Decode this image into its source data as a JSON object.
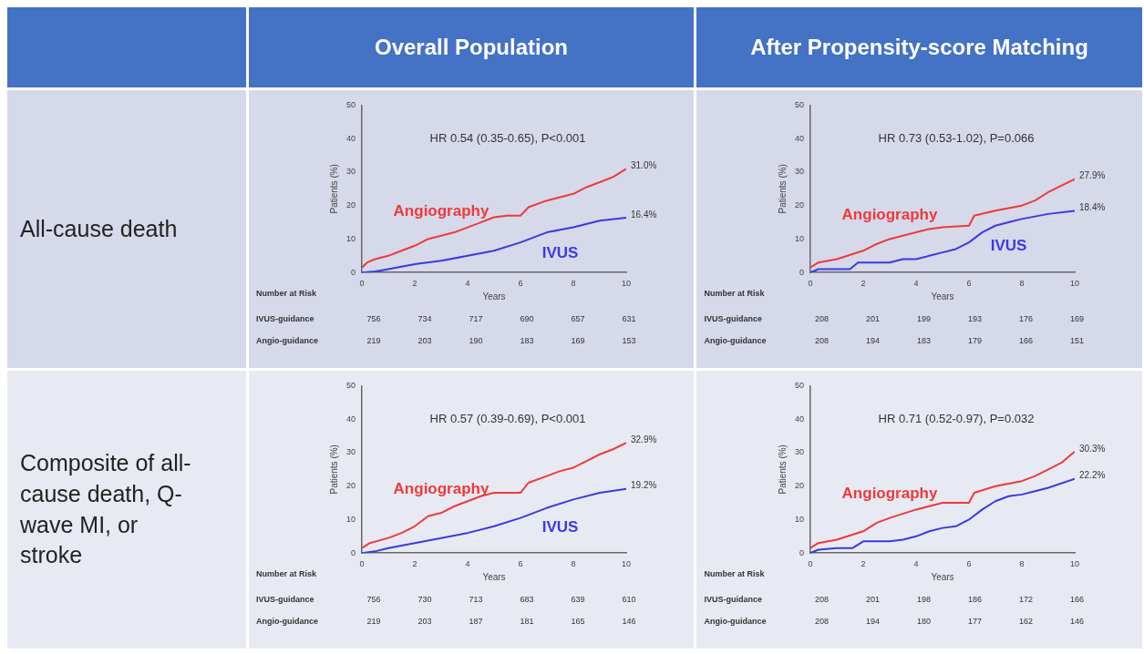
{
  "chart_data": [
    {
      "type": "other",
      "annotations": [
        "Overall Population",
        "After Propensity-score Matching",
        "All-cause death",
        "Composite of all-cause death, Q-wave MI, or stroke"
      ]
    },
    {
      "type": "line",
      "xlabel": "Years",
      "ylabel": "Patients (%)",
      "xlim": [
        0,
        10
      ],
      "xticks": [
        0,
        2,
        4,
        6,
        8,
        10
      ],
      "ylim": [
        0,
        50
      ],
      "yticks": [
        0,
        10,
        20,
        30,
        40,
        50
      ],
      "marker": "none",
      "grid": false,
      "legend": false,
      "annotations": [
        "HR 0.54 (0.35-0.65), P<0.001",
        "Number at Risk",
        "IVUS-guidance",
        "756",
        "734",
        "717",
        "690",
        "657",
        "631",
        "Angio-guidance",
        "219",
        "203",
        "190",
        "183",
        "169",
        "153"
      ],
      "series": [
        {
          "name": "Angiography",
          "color": "#ee3a3a",
          "x": [
            0,
            0.2,
            0.5,
            1,
            1.5,
            2,
            2.5,
            3,
            3.5,
            4,
            4.5,
            5,
            5.5,
            6,
            6.3,
            7,
            7.5,
            8,
            8.5,
            9,
            9.5,
            10
          ],
          "values": [
            1.5,
            3,
            4,
            5,
            6.5,
            8,
            10,
            11,
            12,
            13.5,
            15,
            16.5,
            17,
            17,
            19.5,
            21.5,
            22.5,
            23.5,
            25.5,
            27,
            28.5,
            31.0
          ],
          "value_labels": [
            null,
            null,
            null,
            null,
            null,
            null,
            null,
            null,
            null,
            null,
            null,
            null,
            null,
            null,
            null,
            null,
            null,
            null,
            null,
            null,
            null,
            "31.0%"
          ]
        },
        {
          "name": "IVUS",
          "color": "#3a3ae0",
          "x": [
            0,
            0.5,
            1,
            2,
            3,
            4,
            5,
            6,
            6.5,
            7,
            8,
            9,
            10
          ],
          "values": [
            0,
            0.3,
            1,
            2.5,
            3.5,
            5,
            6.5,
            9,
            10.5,
            12,
            13.5,
            15.5,
            16.4
          ],
          "value_labels": [
            null,
            null,
            null,
            null,
            null,
            null,
            null,
            null,
            null,
            null,
            null,
            null,
            "16.4%"
          ]
        }
      ]
    },
    {
      "type": "line",
      "xlabel": "Years",
      "ylabel": "Patients (%)",
      "xlim": [
        0,
        10
      ],
      "xticks": [
        0,
        2,
        4,
        6,
        8,
        10
      ],
      "ylim": [
        0,
        50
      ],
      "yticks": [
        0,
        10,
        20,
        30,
        40,
        50
      ],
      "marker": "none",
      "grid": false,
      "legend": false,
      "annotations": [
        "HR 0.73 (0.53-1.02), P=0.066",
        "Number at Risk",
        "IVUS-guidance",
        "208",
        "201",
        "199",
        "193",
        "176",
        "169",
        "Angio-guidance",
        "208",
        "194",
        "183",
        "179",
        "166",
        "151"
      ],
      "series": [
        {
          "name": "Angiography",
          "color": "#ee3a3a",
          "x": [
            0,
            0.3,
            1,
            2,
            2.5,
            3,
            4,
            4.5,
            5,
            6,
            6.2,
            7,
            8,
            8.5,
            9,
            10
          ],
          "values": [
            1.5,
            3,
            4,
            6.5,
            8.5,
            10,
            12,
            13,
            13.5,
            14,
            17,
            18.5,
            20,
            21.5,
            24,
            27.9
          ],
          "value_labels": [
            null,
            null,
            null,
            null,
            null,
            null,
            null,
            null,
            null,
            null,
            null,
            null,
            null,
            null,
            null,
            "27.9%"
          ]
        },
        {
          "name": "IVUS",
          "color": "#3a3ae0",
          "x": [
            0,
            0.3,
            1.5,
            1.8,
            3,
            3.5,
            4,
            4.5,
            5,
            5.5,
            6,
            6.5,
            7,
            7.5,
            8,
            9,
            10
          ],
          "values": [
            0,
            1,
            1,
            3,
            3,
            4,
            4,
            5,
            6,
            7,
            9,
            12,
            14,
            15,
            16,
            17.5,
            18.4
          ],
          "value_labels": [
            null,
            null,
            null,
            null,
            null,
            null,
            null,
            null,
            null,
            null,
            null,
            null,
            null,
            null,
            null,
            null,
            "18.4%"
          ]
        }
      ]
    },
    {
      "type": "line",
      "xlabel": "Years",
      "ylabel": "Patients (%)",
      "xlim": [
        0,
        10
      ],
      "xticks": [
        0,
        2,
        4,
        6,
        8,
        10
      ],
      "ylim": [
        0,
        50
      ],
      "yticks": [
        0,
        10,
        20,
        30,
        40,
        50
      ],
      "marker": "none",
      "grid": false,
      "legend": false,
      "annotations": [
        "HR 0.57 (0.39-0.69), P<0.001",
        "Number at Risk",
        "IVUS-guidance",
        "756",
        "730",
        "713",
        "683",
        "639",
        "610",
        "Angio-guidance",
        "219",
        "203",
        "187",
        "181",
        "165",
        "146"
      ],
      "series": [
        {
          "name": "Angiography",
          "color": "#ee3a3a",
          "x": [
            0,
            0.3,
            1,
            1.5,
            2,
            2.5,
            3,
            3.5,
            4,
            4.5,
            5,
            6,
            6.3,
            7,
            7.5,
            8,
            8.5,
            9,
            9.5,
            10
          ],
          "values": [
            1.5,
            3,
            4.5,
            6,
            8,
            11,
            12,
            14,
            15.5,
            17,
            18,
            18,
            21,
            23,
            24.5,
            25.5,
            27.5,
            29.5,
            31,
            32.9
          ],
          "value_labels": [
            null,
            null,
            null,
            null,
            null,
            null,
            null,
            null,
            null,
            null,
            null,
            null,
            null,
            null,
            null,
            null,
            null,
            null,
            null,
            "32.9%"
          ]
        },
        {
          "name": "IVUS",
          "color": "#3a3ae0",
          "x": [
            0,
            0.5,
            1,
            2,
            3,
            4,
            5,
            6,
            7,
            8,
            9,
            10
          ],
          "values": [
            0,
            0.5,
            1.5,
            3,
            4.5,
            6,
            8,
            10.5,
            13.5,
            16,
            18,
            19.2
          ],
          "value_labels": [
            null,
            null,
            null,
            null,
            null,
            null,
            null,
            null,
            null,
            null,
            null,
            "19.2%"
          ]
        }
      ]
    },
    {
      "type": "line",
      "xlabel": "Years",
      "ylabel": "Patients (%)",
      "xlim": [
        0,
        10
      ],
      "xticks": [
        0,
        2,
        4,
        6,
        8,
        10
      ],
      "ylim": [
        0,
        50
      ],
      "yticks": [
        0,
        10,
        20,
        30,
        40,
        50
      ],
      "marker": "none",
      "grid": false,
      "legend": false,
      "annotations": [
        "HR 0.71 (0.52-0.97), P=0.032",
        "Number at Risk",
        "IVUS-guidance",
        "208",
        "201",
        "198",
        "186",
        "172",
        "166",
        "Angio-guidance",
        "208",
        "194",
        "180",
        "177",
        "162",
        "146"
      ],
      "series": [
        {
          "name": "Angiography",
          "color": "#ee3a3a",
          "x": [
            0,
            0.3,
            1,
            2,
            2.5,
            3,
            4,
            4.5,
            5,
            6,
            6.2,
            7,
            8,
            8.5,
            9,
            9.5,
            10
          ],
          "values": [
            1.5,
            3,
            4,
            6.5,
            9,
            10.5,
            13,
            14,
            15,
            15,
            18,
            20,
            21.5,
            23,
            25,
            27,
            30.3
          ],
          "value_labels": [
            null,
            null,
            null,
            null,
            null,
            null,
            null,
            null,
            null,
            null,
            null,
            null,
            null,
            null,
            null,
            null,
            "30.3%"
          ]
        },
        {
          "color": "#3a3ae0",
          "x": [
            0,
            0.3,
            1,
            1.6,
            2,
            3,
            3.5,
            4,
            4.5,
            5,
            5.5,
            6,
            6.5,
            7,
            7.5,
            8,
            8.5,
            9,
            10
          ],
          "values": [
            0,
            1,
            1.5,
            1.5,
            3.5,
            3.5,
            4,
            5,
            6.5,
            7.5,
            8,
            10,
            13,
            15.5,
            17,
            17.5,
            18.5,
            19.5,
            22.2
          ],
          "value_labels": [
            null,
            null,
            null,
            null,
            null,
            null,
            null,
            null,
            null,
            null,
            null,
            null,
            null,
            null,
            null,
            null,
            null,
            null,
            "22.2%"
          ]
        }
      ]
    }
  ]
}
